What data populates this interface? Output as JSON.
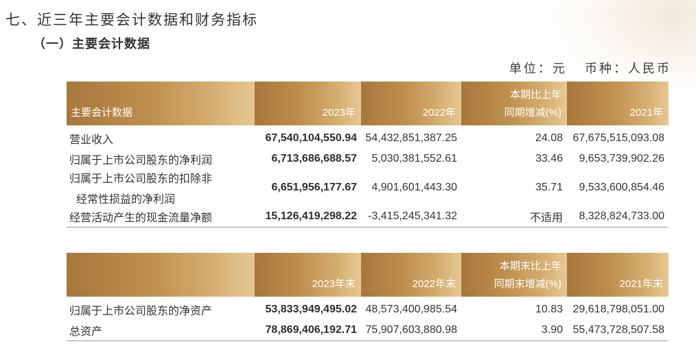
{
  "heading": "七、近三年主要会计数据和财务指标",
  "subheading": "（一）主要会计数据",
  "unit_label": "单位：元   币种：人民币",
  "table1": {
    "headers": {
      "col0": "主要会计数据",
      "col1": "2023年",
      "col2": "2022年",
      "col3_line1": "本期比上年",
      "col3_line2": "同期增减(%)",
      "col4": "2021年"
    },
    "rows": [
      {
        "name": "营业收入",
        "y2023": "67,540,104,550.94",
        "y2022": "54,432,851,387.25",
        "change": "24.08",
        "y2021": "67,675,515,093.08"
      },
      {
        "name": "归属于上市公司股东的净利润",
        "y2023": "6,713,686,688.57",
        "y2022": "5,030,381,552.61",
        "change": "33.46",
        "y2021": "9,653,739,902.26"
      },
      {
        "name": "归属于上市公司股东的扣除非",
        "name_line2": "经常性损益的净利润",
        "y2023": "6,651,956,177.67",
        "y2022": "4,901,601,443.30",
        "change": "35.71",
        "y2021": "9,533,600,854.46"
      },
      {
        "name": "经营活动产生的现金流量净额",
        "y2023": "15,126,419,298.22",
        "y2022": "-3,415,245,341.32",
        "change": "不适用",
        "y2021": "8,328,824,733.00"
      }
    ]
  },
  "table2": {
    "headers": {
      "col0": "",
      "col1": "2023年末",
      "col2": "2022年末",
      "col3_line1": "本期末比上年",
      "col3_line2": "同期末增减(%)",
      "col4": "2021年末"
    },
    "rows": [
      {
        "name": "归属于上市公司股东的净资产",
        "y2023": "53,833,949,495.02",
        "y2022": "48,573,400,985.54",
        "change": "10.83",
        "y2021": "29,618,798,051.00"
      },
      {
        "name": "总资产",
        "y2023": "78,869,406,192.71",
        "y2022": "75,907,603,880.98",
        "change": "3.90",
        "y2021": "55,473,728,507.58"
      }
    ]
  }
}
